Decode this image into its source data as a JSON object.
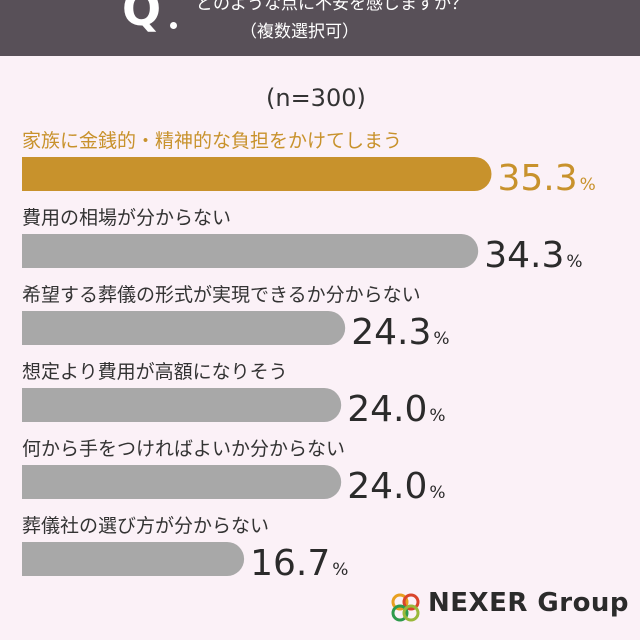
{
  "header": {
    "q_mark": "Q",
    "question": "どのような点に不安を感じますか？",
    "note": "（複数選択可）"
  },
  "sample_size": "(n=300)",
  "brand": {
    "name": "NEXER Group"
  },
  "colors": {
    "highlight": "#c8922c",
    "bar": "#a8a8a8",
    "header": "#585058",
    "background": "#fbf1f7"
  },
  "chart_data": {
    "type": "bar",
    "orientation": "horizontal",
    "categories": [
      "家族に金銭的・精神的な負担をかけてしまう",
      "費用の相場が分からない",
      "希望する葬儀の形式が実現できるか分からない",
      "想定より費用が高額になりそう",
      "何から手をつければよいか分からない",
      "葬儀社の選び方が分からない"
    ],
    "values": [
      35.3,
      34.3,
      24.3,
      24.0,
      24.0,
      16.7
    ],
    "value_labels": [
      "35.3",
      "34.3",
      "24.3",
      "24.0",
      "24.0",
      "16.7"
    ],
    "unit": "%",
    "highlight_index": 0,
    "title": "",
    "xlabel": "",
    "ylabel": "",
    "grid": false
  }
}
